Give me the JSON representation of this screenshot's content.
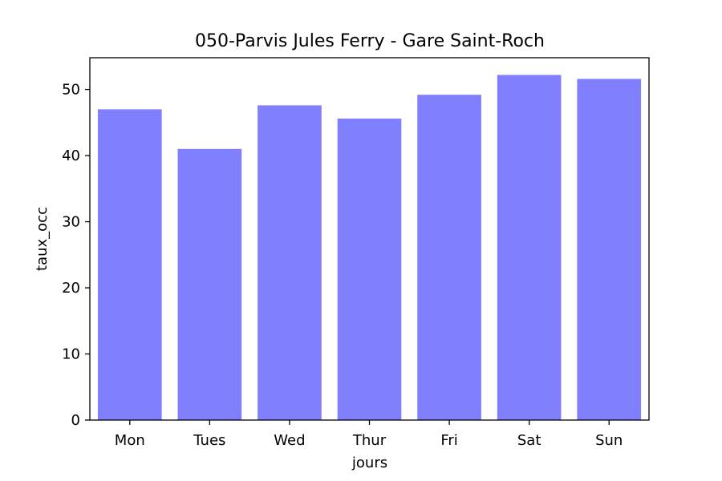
{
  "chart_data": {
    "type": "bar",
    "title": "050-Parvis Jules Ferry - Gare Saint-Roch",
    "xlabel": "jours",
    "ylabel": "taux_occ",
    "categories": [
      "Mon",
      "Tues",
      "Wed",
      "Thur",
      "Fri",
      "Sat",
      "Sun"
    ],
    "values": [
      47.0,
      41.0,
      47.6,
      45.6,
      49.2,
      52.2,
      51.6
    ],
    "ylim": [
      0,
      54.8
    ],
    "yticks": [
      0,
      10,
      20,
      30,
      40,
      50
    ],
    "bar_color": "#8080ff",
    "grid": false,
    "legend": "none"
  }
}
